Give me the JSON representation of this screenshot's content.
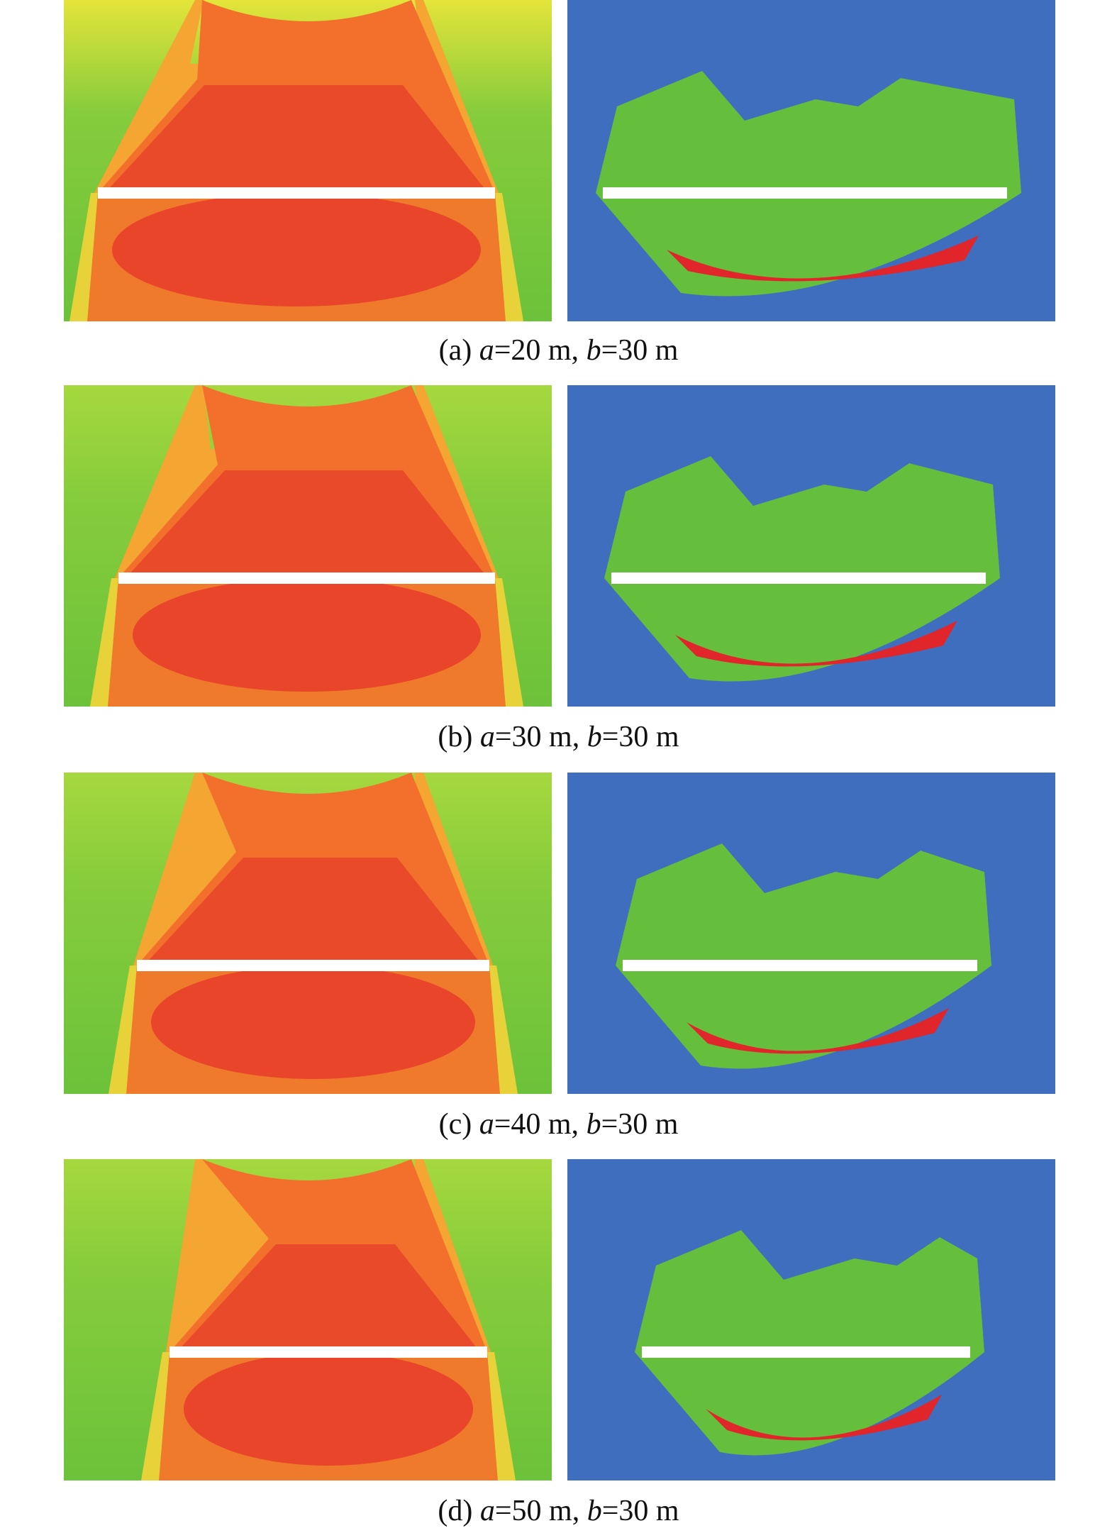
{
  "symbols": {
    "a": "a",
    "b": "b"
  },
  "panels": [
    {
      "label": "(a)",
      "a_value": "=20 m,",
      "b_value": "=30 m"
    },
    {
      "label": "(b)",
      "a_value": "=30 m,",
      "b_value": "=30 m"
    },
    {
      "label": "(c)",
      "a_value": "=40 m,",
      "b_value": "=30 m"
    },
    {
      "label": "(d)",
      "a_value": "=50 m,",
      "b_value": "=30 m"
    }
  ]
}
